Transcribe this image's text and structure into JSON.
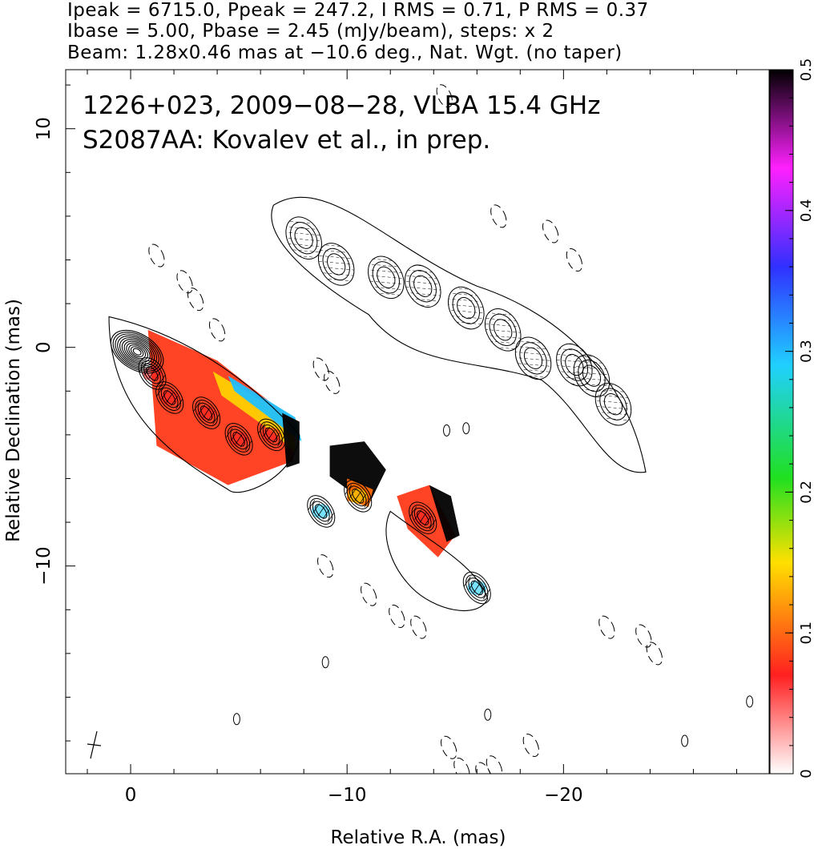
{
  "header": {
    "line1": "Ipeak = 6715.0, Ppeak = 247.2, I RMS = 0.71, P RMS = 0.37",
    "line2": "Ibase = 5.00, Pbase = 2.45 (mJy/beam), steps: x 2",
    "line3": "Beam: 1.28x0.46 mas at −10.6 deg., Nat. Wgt. (no taper)"
  },
  "chart_data": {
    "type": "heatmap",
    "source": "1226+023, 2009−08−28, VLBA 15.4 GHz",
    "reference": "S2087AA: Kovalev et al., in prep.",
    "xlabel": "Relative R.A. (mas)",
    "ylabel": "Relative Declination (mas)",
    "xlim": [
      3,
      -29.5
    ],
    "ylim": [
      -19.5,
      12.7
    ],
    "x_ticks": [
      0,
      -10,
      -20
    ],
    "x_tick_labels": [
      "0",
      "−10",
      "−20"
    ],
    "y_ticks": [
      10,
      0,
      -10
    ],
    "y_tick_labels": [
      "10",
      "0",
      "−10"
    ],
    "colorbar": {
      "range": [
        0,
        0.5
      ],
      "ticks": [
        0,
        0.1,
        0.2,
        0.3,
        0.4,
        0.5
      ],
      "tick_labels": [
        "0",
        "0.1",
        "0.2",
        "0.3",
        "0.4",
        "0.5"
      ],
      "colors": [
        "#ffffff",
        "#ff2020",
        "#ffe000",
        "#20e020",
        "#20d0ff",
        "#3030ff",
        "#ff20ff",
        "#000000"
      ]
    },
    "beam": {
      "major_mas": 1.28,
      "minor_mas": 0.46,
      "pa_deg": -10.6
    },
    "contour_levels_mJy": [
      5,
      10,
      20,
      40,
      80,
      160,
      320,
      640,
      1280,
      2560,
      5120
    ],
    "total_intensity_core": {
      "x": 0,
      "y": 0
    },
    "jet_components": [
      {
        "x": 1.0,
        "y": -1.2,
        "frac_pol": 0.05
      },
      {
        "x": 1.8,
        "y": -2.3,
        "frac_pol": 0.06
      },
      {
        "x": 3.5,
        "y": -3.0,
        "frac_pol": 0.1
      },
      {
        "x": 5.0,
        "y": -4.2,
        "frac_pol": 0.08
      },
      {
        "x": 6.5,
        "y": -4.0,
        "frac_pol": 0.1
      },
      {
        "x": 8.8,
        "y": -7.5,
        "frac_pol": 0.3
      },
      {
        "x": 10.5,
        "y": -6.8,
        "frac_pol": 0.15
      },
      {
        "x": 13.5,
        "y": -7.8,
        "frac_pol": 0.1
      },
      {
        "x": 16.0,
        "y": -11.0,
        "frac_pol": 0.25
      }
    ]
  }
}
